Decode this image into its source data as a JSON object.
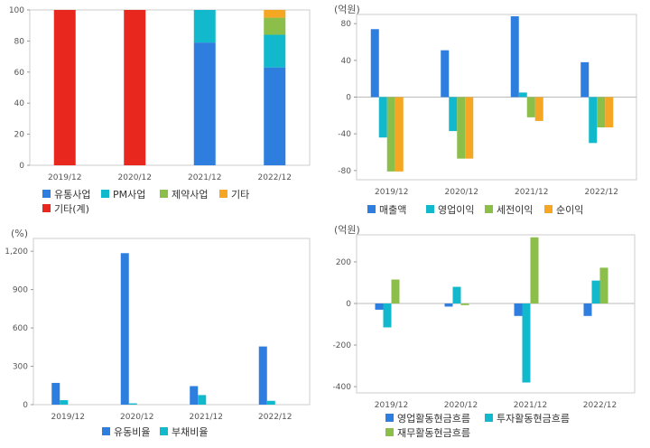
{
  "chart_data": [
    {
      "type": "bar",
      "stacked": true,
      "unit": "",
      "categories": [
        "2019/12",
        "2020/12",
        "2021/12",
        "2022/12"
      ],
      "ylim": [
        0,
        100
      ],
      "yticks": [
        "0",
        "20",
        "40",
        "60",
        "80",
        "100"
      ],
      "series": [
        {
          "name": "유통사업",
          "color": "#2e7ee0",
          "values": [
            0,
            0,
            79,
            63
          ]
        },
        {
          "name": "PM사업",
          "color": "#12b8cc",
          "values": [
            0,
            0,
            21,
            21
          ]
        },
        {
          "name": "제약사업",
          "color": "#8cbe4a",
          "values": [
            0,
            0,
            0,
            11
          ]
        },
        {
          "name": "기타",
          "color": "#f5a623",
          "values": [
            0,
            0,
            0,
            5
          ]
        },
        {
          "name": "기타(계)",
          "color": "#e8281e",
          "values": [
            100,
            100,
            0,
            0
          ]
        }
      ],
      "legend": "bottom",
      "grid": false
    },
    {
      "type": "bar",
      "unit": "(억원)",
      "categories": [
        "2019/12",
        "2020/12",
        "2021/12",
        "2022/12"
      ],
      "ylim": [
        -90,
        90
      ],
      "yticks": [
        "-80",
        "-40",
        "0",
        "40",
        "80"
      ],
      "series": [
        {
          "name": "매출액",
          "color": "#2e7ee0",
          "values": [
            74,
            51,
            88,
            38
          ]
        },
        {
          "name": "영업이익",
          "color": "#12b8cc",
          "values": [
            -44,
            -37,
            5,
            -50
          ]
        },
        {
          "name": "세전이익",
          "color": "#8cbe4a",
          "values": [
            -81,
            -67,
            -22,
            -33
          ]
        },
        {
          "name": "순이익",
          "color": "#f5a623",
          "values": [
            -81,
            -67,
            -26,
            -33
          ]
        }
      ],
      "legend": "bottom",
      "grid": false
    },
    {
      "type": "bar",
      "unit": "(%)",
      "categories": [
        "2019/12",
        "2020/12",
        "2021/12",
        "2022/12"
      ],
      "ylim": [
        0,
        1300
      ],
      "yticks": [
        "0",
        "300",
        "600",
        "900",
        "1,200"
      ],
      "series": [
        {
          "name": "유동비율",
          "color": "#2e7ee0",
          "values": [
            170,
            1185,
            145,
            455
          ]
        },
        {
          "name": "부채비율",
          "color": "#12b8cc",
          "values": [
            35,
            10,
            75,
            30
          ]
        }
      ],
      "legend": "bottom",
      "grid": false
    },
    {
      "type": "bar",
      "unit": "(억원)",
      "categories": [
        "2019/12",
        "2020/12",
        "2021/12",
        "2022/12"
      ],
      "ylim": [
        -430,
        330
      ],
      "yticks": [
        "-400",
        "-200",
        "0",
        "200"
      ],
      "series": [
        {
          "name": "영업활동현금흐름",
          "color": "#2e7ee0",
          "values": [
            -30,
            -15,
            -60,
            -60
          ]
        },
        {
          "name": "투자활동현금흐름",
          "color": "#12b8cc",
          "values": [
            -115,
            80,
            -380,
            110
          ]
        },
        {
          "name": "재무활동현금흐름",
          "color": "#8cbe4a",
          "values": [
            115,
            -8,
            318,
            172
          ]
        }
      ],
      "legend": "bottom",
      "grid": false
    }
  ]
}
